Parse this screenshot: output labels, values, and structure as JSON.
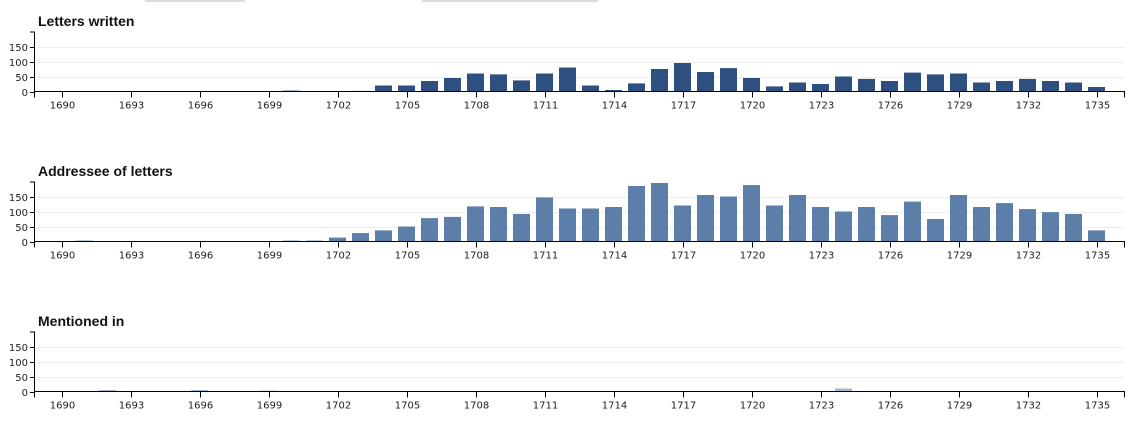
{
  "chart_data": [
    {
      "type": "bar",
      "title": "Letters written",
      "color": "#2e5080",
      "ylim": [
        0,
        200
      ],
      "y_ticks": [
        0,
        50,
        100,
        150
      ],
      "grid": "horizontal",
      "x": [
        1690,
        1691,
        1692,
        1693,
        1694,
        1695,
        1696,
        1697,
        1698,
        1699,
        1700,
        1701,
        1702,
        1703,
        1704,
        1705,
        1706,
        1707,
        1708,
        1709,
        1710,
        1711,
        1712,
        1713,
        1714,
        1715,
        1716,
        1717,
        1718,
        1719,
        1720,
        1721,
        1722,
        1723,
        1724,
        1725,
        1726,
        1727,
        1728,
        1729,
        1730,
        1731,
        1732,
        1733,
        1734,
        1735
      ],
      "values": [
        0,
        0,
        0,
        0,
        0,
        0,
        0,
        0,
        0,
        0,
        3,
        0,
        0,
        2,
        20,
        20,
        35,
        45,
        60,
        57,
        37,
        60,
        80,
        20,
        5,
        27,
        75,
        95,
        65,
        78,
        45,
        17,
        30,
        25,
        50,
        42,
        35,
        63,
        57,
        60,
        30,
        35,
        42,
        35,
        30,
        15
      ],
      "x_ticks": [
        1690,
        1693,
        1696,
        1699,
        1702,
        1705,
        1708,
        1711,
        1714,
        1717,
        1720,
        1723,
        1726,
        1729,
        1732,
        1735
      ]
    },
    {
      "type": "bar",
      "title": "Addressee of letters",
      "color": "#5b7fa8",
      "ylim": [
        0,
        200
      ],
      "y_ticks": [
        0,
        50,
        100,
        150
      ],
      "grid": "horizontal",
      "x": [
        1690,
        1691,
        1692,
        1693,
        1694,
        1695,
        1696,
        1697,
        1698,
        1699,
        1700,
        1701,
        1702,
        1703,
        1704,
        1705,
        1706,
        1707,
        1708,
        1709,
        1710,
        1711,
        1712,
        1713,
        1714,
        1715,
        1716,
        1717,
        1718,
        1719,
        1720,
        1721,
        1722,
        1723,
        1724,
        1725,
        1726,
        1727,
        1728,
        1729,
        1730,
        1731,
        1732,
        1733,
        1734,
        1735
      ],
      "values": [
        0,
        3,
        0,
        0,
        0,
        0,
        0,
        0,
        0,
        0,
        3,
        3,
        13,
        28,
        37,
        50,
        78,
        82,
        117,
        115,
        92,
        147,
        110,
        110,
        115,
        185,
        195,
        120,
        155,
        150,
        188,
        120,
        155,
        115,
        100,
        115,
        88,
        133,
        75,
        155,
        115,
        128,
        108,
        98,
        92,
        37
      ],
      "x_ticks": [
        1690,
        1693,
        1696,
        1699,
        1702,
        1705,
        1708,
        1711,
        1714,
        1717,
        1720,
        1723,
        1726,
        1729,
        1732,
        1735
      ]
    },
    {
      "type": "bar",
      "title": "Mentioned in",
      "color": "#9eb8d6",
      "ylim": [
        0,
        200
      ],
      "y_ticks": [
        0,
        50,
        100,
        150
      ],
      "grid": "horizontal",
      "x": [
        1690,
        1691,
        1692,
        1693,
        1694,
        1695,
        1696,
        1697,
        1698,
        1699,
        1700,
        1701,
        1702,
        1703,
        1704,
        1705,
        1706,
        1707,
        1708,
        1709,
        1710,
        1711,
        1712,
        1713,
        1714,
        1715,
        1716,
        1717,
        1718,
        1719,
        1720,
        1721,
        1722,
        1723,
        1724,
        1725,
        1726,
        1727,
        1728,
        1729,
        1730,
        1731,
        1732,
        1733,
        1734,
        1735
      ],
      "values": [
        0,
        0,
        5,
        0,
        0,
        0,
        5,
        0,
        0,
        3,
        0,
        0,
        0,
        0,
        0,
        0,
        0,
        0,
        0,
        0,
        0,
        0,
        0,
        0,
        0,
        0,
        0,
        0,
        0,
        0,
        0,
        0,
        0,
        0,
        10,
        0,
        0,
        0,
        0,
        0,
        0,
        0,
        0,
        0,
        0,
        0
      ],
      "x_ticks": [
        1690,
        1693,
        1696,
        1699,
        1702,
        1705,
        1708,
        1711,
        1714,
        1717,
        1720,
        1723,
        1726,
        1729,
        1732,
        1735
      ]
    }
  ]
}
